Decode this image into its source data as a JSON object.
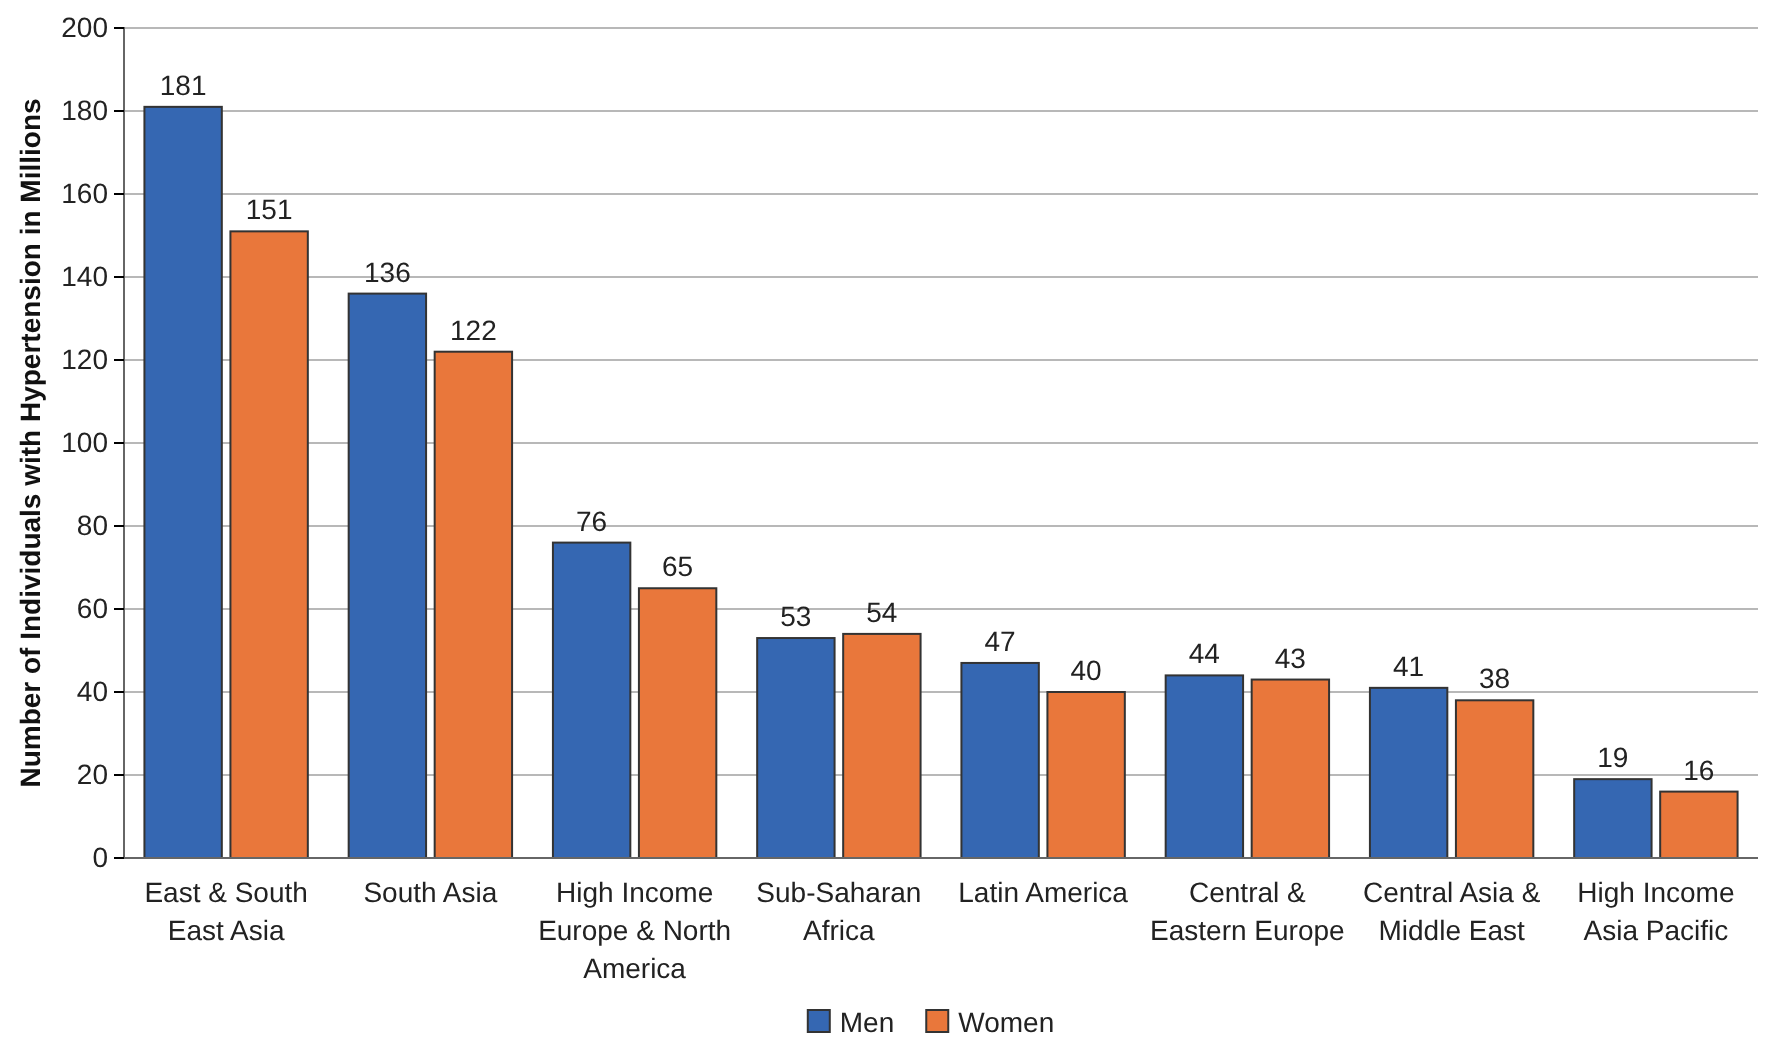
{
  "chart_data": {
    "type": "bar",
    "ylabel": "Number of Individuals with Hypertension in Millions",
    "categories": [
      "East & South East Asia",
      "South Asia",
      "High Income Europe & North America",
      "Sub-Saharan Africa",
      "Latin America",
      "Central & Eastern Europe",
      "Central Asia & Middle East",
      "High Income Asia Pacific"
    ],
    "series": [
      {
        "name": "Men",
        "color": "#3567b2",
        "values": [
          181,
          136,
          76,
          53,
          47,
          44,
          41,
          19
        ]
      },
      {
        "name": "Women",
        "color": "#e9773b",
        "values": [
          151,
          122,
          65,
          54,
          40,
          43,
          38,
          16
        ]
      }
    ],
    "ylim": [
      0,
      200
    ],
    "yticks": [
      0,
      20,
      40,
      60,
      80,
      100,
      120,
      140,
      160,
      180,
      200
    ],
    "grid": "y",
    "legend": "bottom",
    "data_labels": true
  }
}
